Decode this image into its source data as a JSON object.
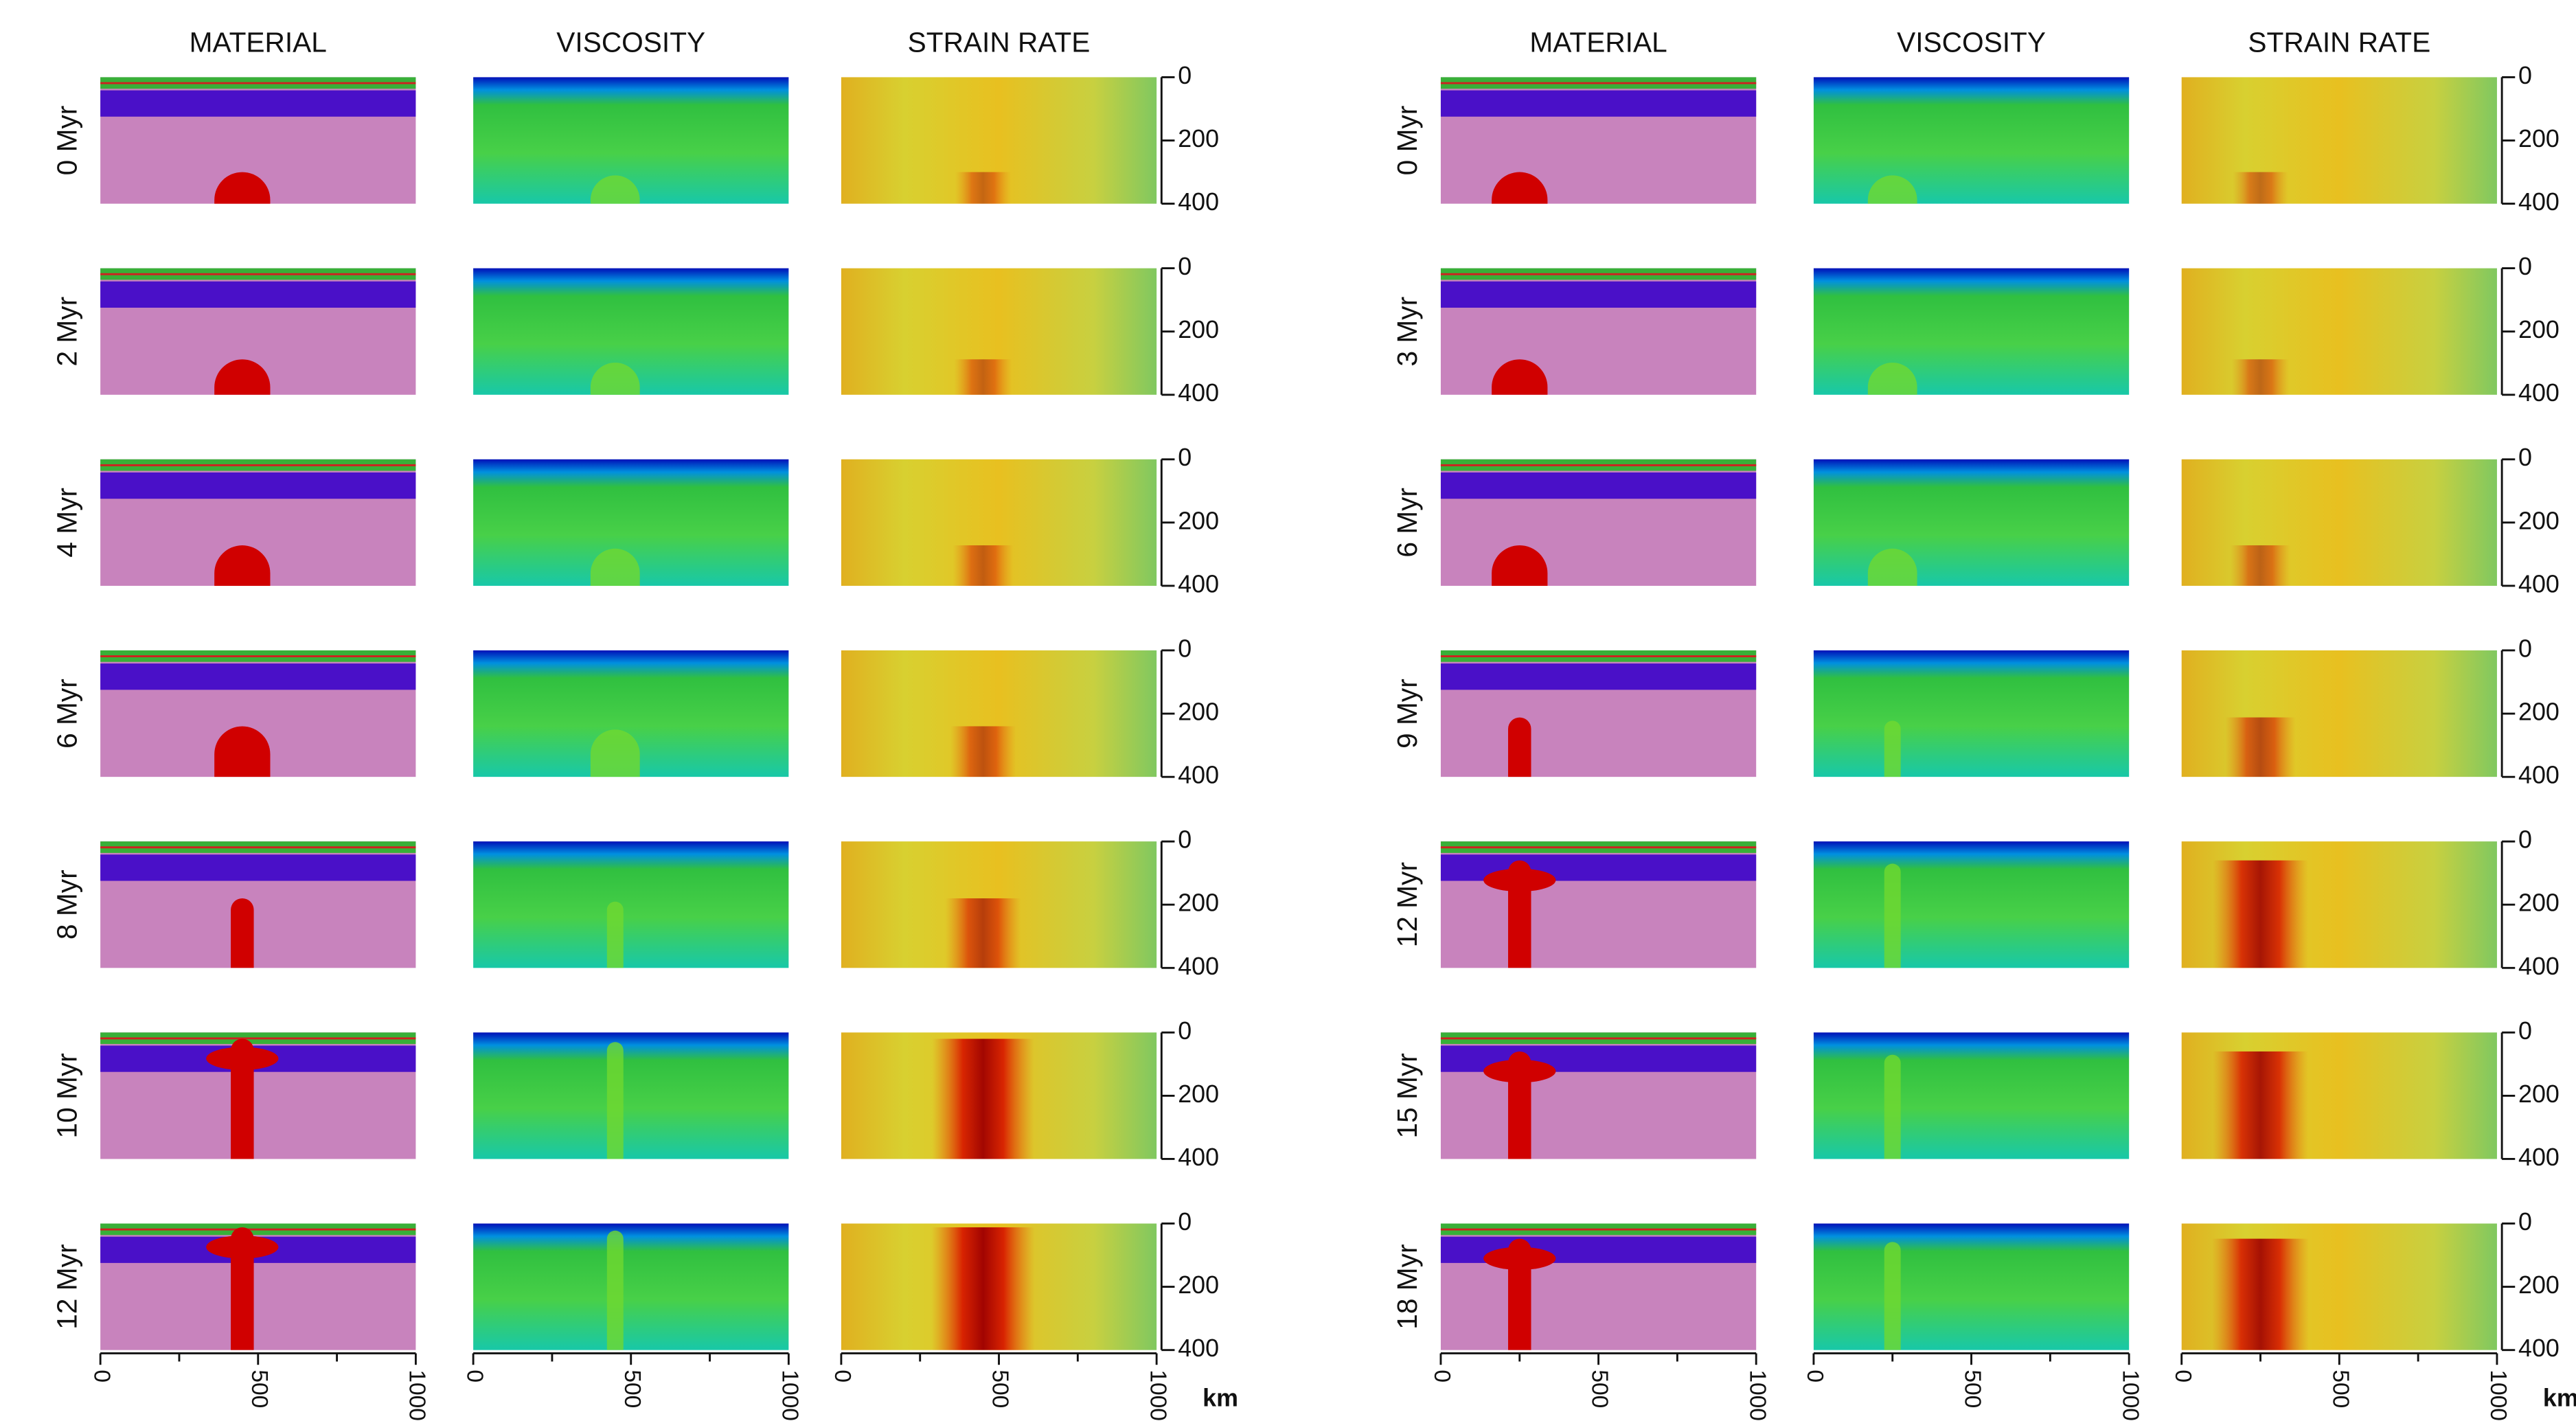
{
  "groups": [
    {
      "columns": [
        "MATERIAL",
        "VISCOSITY",
        "STRAIN RATE"
      ],
      "rows": [
        "0 Myr",
        "2 Myr",
        "4 Myr",
        "6 Myr",
        "8 Myr",
        "10 Myr",
        "12 Myr"
      ]
    },
    {
      "columns": [
        "MATERIAL",
        "VISCOSITY",
        "STRAIN RATE"
      ],
      "rows": [
        "0 Myr",
        "3 Myr",
        "6 Myr",
        "9 Myr",
        "12 Myr",
        "15 Myr",
        "18 Myr"
      ]
    }
  ],
  "depth_axis": {
    "lim": [
      0,
      400
    ],
    "ticks": [
      0,
      200,
      400
    ]
  },
  "x_axis": {
    "lim": [
      0,
      1000
    ],
    "ticks": [
      0,
      500,
      1000
    ],
    "minor_ticks": [
      250,
      750
    ],
    "unit": "km"
  }
}
